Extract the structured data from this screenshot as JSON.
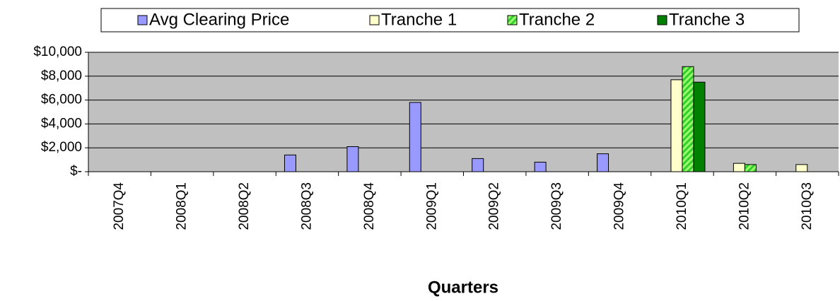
{
  "chart_data": {
    "type": "bar",
    "x_label": "Quarters",
    "categories": [
      "2007Q4",
      "2008Q1",
      "2008Q2",
      "2008Q3",
      "2008Q4",
      "2009Q1",
      "2009Q2",
      "2009Q3",
      "2009Q4",
      "2010Q1",
      "2010Q2",
      "2010Q3"
    ],
    "series": [
      {
        "name": "Avg Clearing Price",
        "color": "#9999ff",
        "values": [
          null,
          null,
          null,
          1400,
          2100,
          5800,
          1100,
          800,
          1500,
          null,
          null,
          null
        ]
      },
      {
        "name": "Tranche 1",
        "color": "#ffffcc",
        "values": [
          null,
          null,
          null,
          null,
          null,
          null,
          null,
          null,
          null,
          7700,
          700,
          600
        ]
      },
      {
        "name": "Tranche 2",
        "color": "#33cc33",
        "values": [
          null,
          null,
          null,
          null,
          null,
          null,
          null,
          null,
          null,
          8800,
          600,
          null
        ]
      },
      {
        "name": "Tranche 3",
        "color": "#008000",
        "values": [
          null,
          null,
          null,
          null,
          null,
          null,
          null,
          null,
          null,
          7500,
          null,
          null
        ]
      }
    ],
    "ylim": [
      0,
      10000
    ],
    "yticks": [
      {
        "value": 0,
        "label": "$-"
      },
      {
        "value": 2000,
        "label": "$2,000"
      },
      {
        "value": 4000,
        "label": "$4,000"
      },
      {
        "value": 6000,
        "label": "$6,000"
      },
      {
        "value": 8000,
        "label": "$8,000"
      },
      {
        "value": 10000,
        "label": "$10,000"
      }
    ],
    "grid": true,
    "legend": "top"
  }
}
